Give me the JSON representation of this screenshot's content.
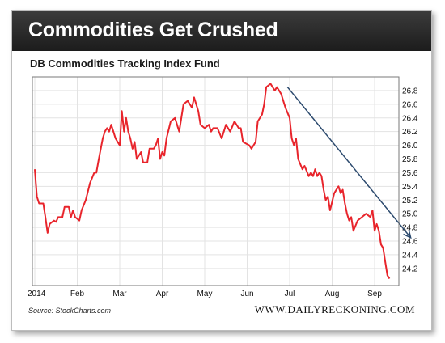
{
  "header": {
    "title": "Commodities Get Crushed"
  },
  "footer": {
    "source": "Source: StockCharts.com",
    "brand": "WWW.DAILYRECKONING.COM"
  },
  "colors": {
    "line": "#e8242b",
    "arrow": "#2c4a6e",
    "header_bg": "#262626"
  },
  "chart_data": {
    "type": "line",
    "title": "DB Commodities Tracking Index Fund",
    "xlabel": "",
    "ylabel": "",
    "ylim": [
      23.95,
      27.0
    ],
    "yticks": [
      24.2,
      24.4,
      24.6,
      24.8,
      25.0,
      25.2,
      25.4,
      25.6,
      25.8,
      26.0,
      26.2,
      26.4,
      26.6,
      26.8
    ],
    "ytick_labels": [
      "24.2",
      "24.4",
      "24.6",
      "24.8",
      "25.0",
      "25.2",
      "25.4",
      "25.6",
      "25.8",
      "26.0",
      "26.2",
      "26.4",
      "26.6",
      "26.8"
    ],
    "xlim": [
      0,
      8.55
    ],
    "xticks": [
      {
        "label": "2014",
        "x": 0
      },
      {
        "label": "Feb",
        "x": 1
      },
      {
        "label": "Mar",
        "x": 2
      },
      {
        "label": "Apr",
        "x": 3
      },
      {
        "label": "May",
        "x": 4
      },
      {
        "label": "Jun",
        "x": 5
      },
      {
        "label": "Jul",
        "x": 6
      },
      {
        "label": "Aug",
        "x": 7
      },
      {
        "label": "Sep",
        "x": 8
      }
    ],
    "grid": true,
    "series": [
      {
        "values": [
          [
            0.0,
            25.65
          ],
          [
            0.05,
            25.25
          ],
          [
            0.1,
            25.15
          ],
          [
            0.2,
            25.15
          ],
          [
            0.25,
            24.95
          ],
          [
            0.3,
            24.72
          ],
          [
            0.35,
            24.85
          ],
          [
            0.45,
            24.9
          ],
          [
            0.5,
            24.88
          ],
          [
            0.55,
            24.95
          ],
          [
            0.65,
            24.95
          ],
          [
            0.7,
            25.1
          ],
          [
            0.8,
            25.1
          ],
          [
            0.85,
            24.95
          ],
          [
            0.9,
            25.05
          ],
          [
            0.95,
            24.95
          ],
          [
            1.05,
            24.9
          ],
          [
            1.1,
            25.05
          ],
          [
            1.2,
            25.2
          ],
          [
            1.3,
            25.45
          ],
          [
            1.4,
            25.6
          ],
          [
            1.45,
            25.6
          ],
          [
            1.5,
            25.78
          ],
          [
            1.6,
            26.1
          ],
          [
            1.65,
            26.2
          ],
          [
            1.7,
            26.25
          ],
          [
            1.75,
            26.2
          ],
          [
            1.8,
            26.3
          ],
          [
            1.9,
            26.1
          ],
          [
            2.0,
            26.0
          ],
          [
            2.05,
            26.5
          ],
          [
            2.1,
            26.2
          ],
          [
            2.15,
            26.4
          ],
          [
            2.2,
            26.2
          ],
          [
            2.25,
            26.1
          ],
          [
            2.3,
            25.95
          ],
          [
            2.35,
            26.05
          ],
          [
            2.4,
            25.8
          ],
          [
            2.5,
            25.9
          ],
          [
            2.55,
            25.75
          ],
          [
            2.65,
            25.75
          ],
          [
            2.7,
            25.95
          ],
          [
            2.8,
            25.95
          ],
          [
            2.85,
            26.0
          ],
          [
            2.9,
            26.1
          ],
          [
            2.95,
            25.8
          ],
          [
            3.0,
            25.9
          ],
          [
            3.05,
            25.85
          ],
          [
            3.1,
            26.1
          ],
          [
            3.2,
            26.35
          ],
          [
            3.3,
            26.4
          ],
          [
            3.4,
            26.2
          ],
          [
            3.5,
            26.6
          ],
          [
            3.6,
            26.65
          ],
          [
            3.7,
            26.55
          ],
          [
            3.75,
            26.7
          ],
          [
            3.85,
            26.5
          ],
          [
            3.9,
            26.3
          ],
          [
            4.0,
            26.25
          ],
          [
            4.1,
            26.3
          ],
          [
            4.15,
            26.2
          ],
          [
            4.2,
            26.25
          ],
          [
            4.3,
            26.25
          ],
          [
            4.4,
            26.1
          ],
          [
            4.5,
            26.3
          ],
          [
            4.6,
            26.2
          ],
          [
            4.7,
            26.35
          ],
          [
            4.8,
            26.25
          ],
          [
            4.85,
            26.25
          ],
          [
            4.9,
            26.05
          ],
          [
            5.05,
            26.0
          ],
          [
            5.1,
            25.95
          ],
          [
            5.2,
            26.05
          ],
          [
            5.25,
            26.35
          ],
          [
            5.35,
            26.45
          ],
          [
            5.4,
            26.6
          ],
          [
            5.45,
            26.85
          ],
          [
            5.55,
            26.9
          ],
          [
            5.65,
            26.8
          ],
          [
            5.7,
            26.85
          ],
          [
            5.8,
            26.75
          ],
          [
            5.9,
            26.55
          ],
          [
            6.0,
            26.4
          ],
          [
            6.05,
            26.1
          ],
          [
            6.1,
            26.0
          ],
          [
            6.15,
            26.1
          ],
          [
            6.2,
            25.8
          ],
          [
            6.3,
            25.65
          ],
          [
            6.35,
            25.7
          ],
          [
            6.45,
            25.55
          ],
          [
            6.5,
            25.6
          ],
          [
            6.55,
            25.55
          ],
          [
            6.6,
            25.65
          ],
          [
            6.65,
            25.55
          ],
          [
            6.7,
            25.6
          ],
          [
            6.75,
            25.55
          ],
          [
            6.8,
            25.35
          ],
          [
            6.85,
            25.2
          ],
          [
            6.9,
            25.25
          ],
          [
            6.95,
            25.05
          ],
          [
            7.05,
            25.3
          ],
          [
            7.15,
            25.4
          ],
          [
            7.2,
            25.3
          ],
          [
            7.25,
            25.35
          ],
          [
            7.3,
            25.15
          ],
          [
            7.35,
            25.0
          ],
          [
            7.4,
            24.9
          ],
          [
            7.45,
            24.95
          ],
          [
            7.5,
            24.75
          ],
          [
            7.6,
            24.9
          ],
          [
            7.7,
            24.95
          ],
          [
            7.8,
            25.0
          ],
          [
            7.9,
            24.95
          ],
          [
            7.95,
            25.05
          ],
          [
            8.0,
            24.75
          ],
          [
            8.05,
            24.85
          ],
          [
            8.1,
            24.75
          ],
          [
            8.15,
            24.55
          ],
          [
            8.2,
            24.5
          ],
          [
            8.25,
            24.3
          ],
          [
            8.3,
            24.1
          ],
          [
            8.35,
            24.05
          ]
        ]
      }
    ],
    "annotations": [
      {
        "type": "arrow",
        "from": [
          5.95,
          26.85
        ],
        "to": [
          8.85,
          24.65
        ]
      }
    ]
  }
}
